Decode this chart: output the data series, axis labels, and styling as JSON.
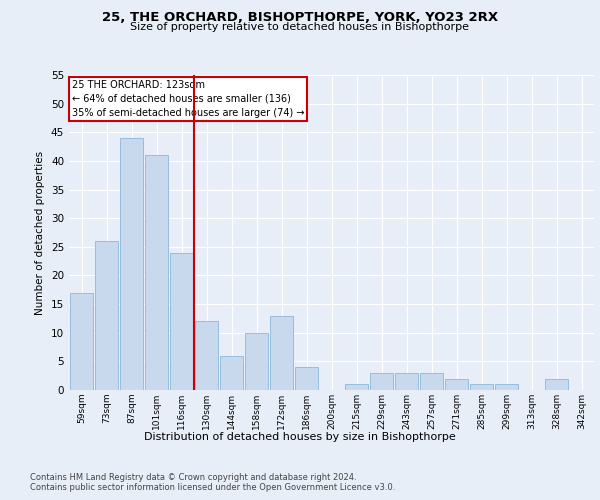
{
  "title1": "25, THE ORCHARD, BISHOPTHORPE, YORK, YO23 2RX",
  "title2": "Size of property relative to detached houses in Bishopthorpe",
  "xlabel": "Distribution of detached houses by size in Bishopthorpe",
  "ylabel": "Number of detached properties",
  "categories": [
    "59sqm",
    "73sqm",
    "87sqm",
    "101sqm",
    "116sqm",
    "130sqm",
    "144sqm",
    "158sqm",
    "172sqm",
    "186sqm",
    "200sqm",
    "215sqm",
    "229sqm",
    "243sqm",
    "257sqm",
    "271sqm",
    "285sqm",
    "299sqm",
    "313sqm",
    "328sqm",
    "342sqm"
  ],
  "values": [
    17,
    26,
    44,
    41,
    24,
    12,
    6,
    10,
    13,
    4,
    0,
    1,
    3,
    3,
    3,
    2,
    1,
    1,
    0,
    2,
    0
  ],
  "bar_color": "#c8d8ed",
  "bar_edge_color": "#7aafd4",
  "vline_color": "#cc0000",
  "annotation_line1": "25 THE ORCHARD: 123sqm",
  "annotation_line2": "← 64% of detached houses are smaller (136)",
  "annotation_line3": "35% of semi-detached houses are larger (74) →",
  "annotation_box_color": "#ffffff",
  "annotation_box_edge": "#cc0000",
  "ylim": [
    0,
    55
  ],
  "yticks": [
    0,
    5,
    10,
    15,
    20,
    25,
    30,
    35,
    40,
    45,
    50,
    55
  ],
  "footer1": "Contains HM Land Registry data © Crown copyright and database right 2024.",
  "footer2": "Contains public sector information licensed under the Open Government Licence v3.0.",
  "bg_color": "#e8eef8",
  "plot_bg_color": "#e8eef8"
}
